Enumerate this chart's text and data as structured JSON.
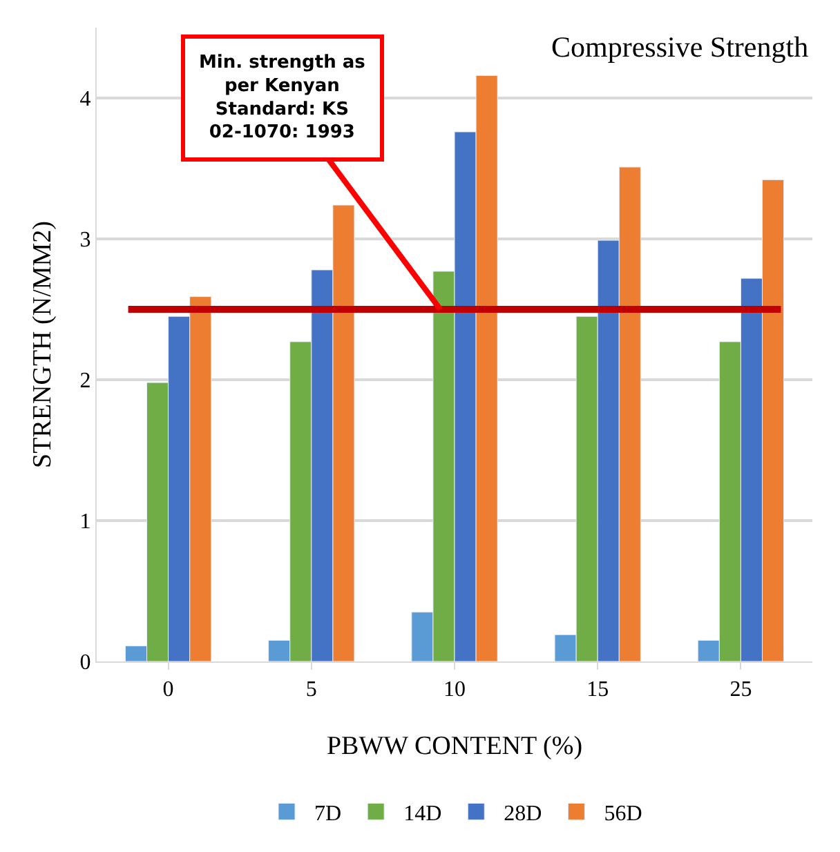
{
  "chart_data": {
    "type": "bar",
    "title": "Compressive Strength",
    "xlabel": "PBWW CONTENT (%)",
    "ylabel": "STRENGTH (N/MM2)",
    "categories": [
      "0",
      "5",
      "10",
      "15",
      "25"
    ],
    "series": [
      {
        "name": "7D",
        "color": "#5b9bd5",
        "values": [
          0.11,
          0.15,
          0.35,
          0.19,
          0.15
        ]
      },
      {
        "name": "14D",
        "color": "#70ad47",
        "values": [
          1.98,
          2.27,
          2.77,
          2.45,
          2.27
        ]
      },
      {
        "name": "28D",
        "color": "#4472c4",
        "values": [
          2.45,
          2.78,
          3.76,
          2.99,
          2.72
        ]
      },
      {
        "name": "56D",
        "color": "#ed7d31",
        "values": [
          2.59,
          3.24,
          4.16,
          3.51,
          3.42
        ]
      }
    ],
    "ylim": [
      0,
      4.5
    ],
    "yticks": [
      0,
      1,
      2,
      3,
      4
    ],
    "grid": "y",
    "legend": "bottom",
    "ref_lines": [
      {
        "axis": "y",
        "value": 2.5,
        "label": "Min. strength as per Kenyan Standard: KS 02-1070: 1993",
        "color": "#c00000",
        "line_style": "solid"
      }
    ]
  }
}
